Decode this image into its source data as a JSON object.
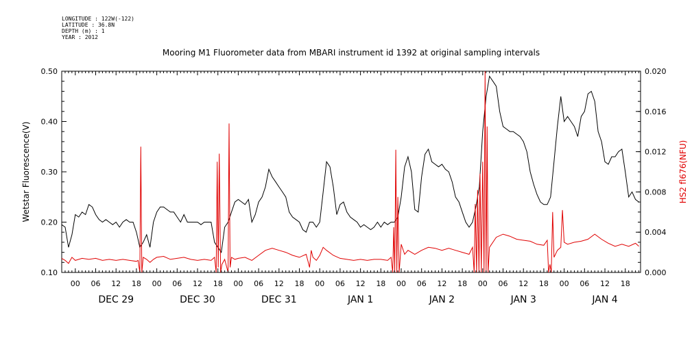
{
  "meta": {
    "longitude": "LONGITUDE : 122W(-122)",
    "latitude": "LATITUDE : 36.8N",
    "depth": "DEPTH (m) : 1",
    "year": "YEAR : 2012"
  },
  "chart_data": {
    "type": "line",
    "title": "Mooring M1 Fluorometer data from MBARI instrument id 1392 at original sampling intervals",
    "x_range_hours": [
      -4,
      166.5
    ],
    "x_tick_labels": [
      "00",
      "06",
      "12",
      "18",
      "00",
      "06",
      "12",
      "18",
      "00",
      "06",
      "12",
      "18",
      "00",
      "06",
      "12",
      "18",
      "00",
      "06",
      "12",
      "18",
      "00",
      "06",
      "12",
      "18",
      "00",
      "06",
      "12",
      "18"
    ],
    "day_labels": [
      "DEC 29",
      "DEC 30",
      "DEC 31",
      "JAN  1",
      "JAN  2",
      "JAN  3",
      "JAN  4"
    ],
    "y_left": {
      "label": "Wetstar Fluorescence(V)",
      "range": [
        0.1,
        0.5
      ],
      "ticks": [
        "0.10",
        "0.20",
        "0.30",
        "0.40",
        "0.50"
      ]
    },
    "y_right": {
      "label": "HS2 fl676(NFU)",
      "range": [
        0.0,
        0.02
      ],
      "ticks": [
        "0.000",
        "0.004",
        "0.008",
        "0.012",
        "0.016",
        "0.020"
      ]
    },
    "series": [
      {
        "axis": "left",
        "color": "#000000",
        "points": [
          [
            -4,
            0.195
          ],
          [
            -3,
            0.19
          ],
          [
            -2,
            0.15
          ],
          [
            -1,
            0.175
          ],
          [
            0,
            0.215
          ],
          [
            1,
            0.21
          ],
          [
            2,
            0.22
          ],
          [
            3,
            0.215
          ],
          [
            4,
            0.235
          ],
          [
            5,
            0.23
          ],
          [
            6,
            0.215
          ],
          [
            7,
            0.205
          ],
          [
            8,
            0.2
          ],
          [
            9,
            0.205
          ],
          [
            10,
            0.2
          ],
          [
            11,
            0.195
          ],
          [
            12,
            0.2
          ],
          [
            13,
            0.19
          ],
          [
            14,
            0.2
          ],
          [
            15,
            0.205
          ],
          [
            16,
            0.2
          ],
          [
            17,
            0.2
          ],
          [
            18,
            0.18
          ],
          [
            19,
            0.15
          ],
          [
            20,
            0.16
          ],
          [
            21,
            0.175
          ],
          [
            22,
            0.15
          ],
          [
            23,
            0.2
          ],
          [
            24,
            0.22
          ],
          [
            25,
            0.23
          ],
          [
            26,
            0.23
          ],
          [
            27,
            0.225
          ],
          [
            28,
            0.22
          ],
          [
            29,
            0.22
          ],
          [
            30,
            0.21
          ],
          [
            31,
            0.2
          ],
          [
            32,
            0.215
          ],
          [
            33,
            0.2
          ],
          [
            34,
            0.2
          ],
          [
            35,
            0.2
          ],
          [
            36,
            0.2
          ],
          [
            37,
            0.195
          ],
          [
            38,
            0.2
          ],
          [
            39,
            0.2
          ],
          [
            40,
            0.2
          ],
          [
            41,
            0.16
          ],
          [
            42,
            0.15
          ],
          [
            43,
            0.14
          ],
          [
            44,
            0.19
          ],
          [
            45,
            0.2
          ],
          [
            46,
            0.22
          ],
          [
            47,
            0.24
          ],
          [
            48,
            0.245
          ],
          [
            49,
            0.24
          ],
          [
            50,
            0.235
          ],
          [
            51,
            0.245
          ],
          [
            52,
            0.2
          ],
          [
            53,
            0.215
          ],
          [
            54,
            0.24
          ],
          [
            55,
            0.25
          ],
          [
            56,
            0.27
          ],
          [
            57,
            0.305
          ],
          [
            58,
            0.29
          ],
          [
            59,
            0.28
          ],
          [
            60,
            0.27
          ],
          [
            61,
            0.26
          ],
          [
            62,
            0.25
          ],
          [
            63,
            0.22
          ],
          [
            64,
            0.21
          ],
          [
            65,
            0.205
          ],
          [
            66,
            0.2
          ],
          [
            67,
            0.185
          ],
          [
            68,
            0.18
          ],
          [
            69,
            0.2
          ],
          [
            70,
            0.2
          ],
          [
            71,
            0.19
          ],
          [
            72,
            0.2
          ],
          [
            73,
            0.26
          ],
          [
            74,
            0.32
          ],
          [
            75,
            0.31
          ],
          [
            76,
            0.27
          ],
          [
            77,
            0.215
          ],
          [
            78,
            0.235
          ],
          [
            79,
            0.24
          ],
          [
            80,
            0.22
          ],
          [
            81,
            0.21
          ],
          [
            82,
            0.205
          ],
          [
            83,
            0.2
          ],
          [
            84,
            0.19
          ],
          [
            85,
            0.195
          ],
          [
            86,
            0.19
          ],
          [
            87,
            0.185
          ],
          [
            88,
            0.19
          ],
          [
            89,
            0.2
          ],
          [
            90,
            0.19
          ],
          [
            91,
            0.2
          ],
          [
            92,
            0.195
          ],
          [
            93,
            0.2
          ],
          [
            94,
            0.2
          ],
          [
            95,
            0.21
          ],
          [
            96,
            0.25
          ],
          [
            97,
            0.31
          ],
          [
            98,
            0.33
          ],
          [
            99,
            0.3
          ],
          [
            100,
            0.225
          ],
          [
            101,
            0.22
          ],
          [
            102,
            0.29
          ],
          [
            103,
            0.335
          ],
          [
            104,
            0.345
          ],
          [
            105,
            0.32
          ],
          [
            106,
            0.315
          ],
          [
            107,
            0.31
          ],
          [
            108,
            0.315
          ],
          [
            109,
            0.305
          ],
          [
            110,
            0.3
          ],
          [
            111,
            0.28
          ],
          [
            112,
            0.25
          ],
          [
            113,
            0.24
          ],
          [
            114,
            0.22
          ],
          [
            115,
            0.2
          ],
          [
            116,
            0.19
          ],
          [
            117,
            0.2
          ],
          [
            118,
            0.23
          ],
          [
            119,
            0.27
          ],
          [
            120,
            0.38
          ],
          [
            121,
            0.45
          ],
          [
            122,
            0.49
          ],
          [
            123,
            0.48
          ],
          [
            124,
            0.47
          ],
          [
            125,
            0.42
          ],
          [
            126,
            0.39
          ],
          [
            127,
            0.385
          ],
          [
            128,
            0.38
          ],
          [
            129,
            0.38
          ],
          [
            130,
            0.375
          ],
          [
            131,
            0.37
          ],
          [
            132,
            0.36
          ],
          [
            133,
            0.34
          ],
          [
            134,
            0.3
          ],
          [
            135,
            0.275
          ],
          [
            136,
            0.255
          ],
          [
            137,
            0.24
          ],
          [
            138,
            0.235
          ],
          [
            139,
            0.235
          ],
          [
            140,
            0.25
          ],
          [
            141,
            0.32
          ],
          [
            142,
            0.39
          ],
          [
            143,
            0.45
          ],
          [
            144,
            0.4
          ],
          [
            145,
            0.41
          ],
          [
            146,
            0.4
          ],
          [
            147,
            0.39
          ],
          [
            148,
            0.37
          ],
          [
            149,
            0.41
          ],
          [
            150,
            0.42
          ],
          [
            151,
            0.455
          ],
          [
            152,
            0.46
          ],
          [
            153,
            0.44
          ],
          [
            154,
            0.38
          ],
          [
            155,
            0.36
          ],
          [
            156,
            0.32
          ],
          [
            157,
            0.315
          ],
          [
            158,
            0.33
          ],
          [
            159,
            0.33
          ],
          [
            160,
            0.34
          ],
          [
            161,
            0.345
          ],
          [
            162,
            0.3
          ],
          [
            163,
            0.25
          ],
          [
            164,
            0.26
          ],
          [
            165,
            0.245
          ],
          [
            166,
            0.24
          ]
        ]
      },
      {
        "axis": "right",
        "color": "#e00000",
        "points": [
          [
            -4,
            0.0014
          ],
          [
            -3,
            0.0012
          ],
          [
            -2,
            0.0009
          ],
          [
            -1,
            0.0015
          ],
          [
            0,
            0.0012
          ],
          [
            2,
            0.0014
          ],
          [
            4,
            0.0013
          ],
          [
            6,
            0.0014
          ],
          [
            8,
            0.0012
          ],
          [
            10,
            0.0013
          ],
          [
            12,
            0.0012
          ],
          [
            14,
            0.0013
          ],
          [
            16,
            0.0012
          ],
          [
            18,
            0.0011
          ],
          [
            18.5,
            0.0012
          ],
          [
            19,
            0.0
          ],
          [
            19.3,
            0.0125
          ],
          [
            19.6,
            0.0
          ],
          [
            20,
            0.0015
          ],
          [
            21,
            0.0013
          ],
          [
            22,
            0.001
          ],
          [
            23,
            0.0013
          ],
          [
            24,
            0.0015
          ],
          [
            26,
            0.0016
          ],
          [
            28,
            0.0013
          ],
          [
            30,
            0.0014
          ],
          [
            32,
            0.0015
          ],
          [
            34,
            0.0013
          ],
          [
            36,
            0.0012
          ],
          [
            38,
            0.0013
          ],
          [
            40,
            0.0012
          ],
          [
            41,
            0.0015
          ],
          [
            41.5,
            0.0
          ],
          [
            41.8,
            0.011
          ],
          [
            42.1,
            0.0005
          ],
          [
            42.4,
            0.0118
          ],
          [
            42.8,
            0.0
          ],
          [
            43.2,
            0.0008
          ],
          [
            44,
            0.0013
          ],
          [
            45,
            0.0
          ],
          [
            45.3,
            0.0148
          ],
          [
            45.6,
            0.0005
          ],
          [
            46,
            0.0015
          ],
          [
            47,
            0.0013
          ],
          [
            48,
            0.0014
          ],
          [
            50,
            0.0015
          ],
          [
            52,
            0.0012
          ],
          [
            54,
            0.0017
          ],
          [
            56,
            0.0022
          ],
          [
            58,
            0.0024
          ],
          [
            60,
            0.0022
          ],
          [
            62,
            0.002
          ],
          [
            64,
            0.0017
          ],
          [
            66,
            0.0015
          ],
          [
            68,
            0.0018
          ],
          [
            69,
            0.0005
          ],
          [
            69.5,
            0.0022
          ],
          [
            70,
            0.0015
          ],
          [
            71,
            0.0012
          ],
          [
            72,
            0.0017
          ],
          [
            73,
            0.0025
          ],
          [
            74,
            0.0022
          ],
          [
            76,
            0.0017
          ],
          [
            78,
            0.0014
          ],
          [
            80,
            0.0013
          ],
          [
            82,
            0.0012
          ],
          [
            84,
            0.0013
          ],
          [
            86,
            0.0012
          ],
          [
            88,
            0.0013
          ],
          [
            90,
            0.0013
          ],
          [
            92,
            0.0012
          ],
          [
            93,
            0.0015
          ],
          [
            93.5,
            0.0
          ],
          [
            93.8,
            0.0045
          ],
          [
            94.1,
            0.0
          ],
          [
            94.4,
            0.0122
          ],
          [
            94.7,
            0.0
          ],
          [
            95,
            0.0075
          ],
          [
            95.4,
            0.0
          ],
          [
            96,
            0.0028
          ],
          [
            97,
            0.0018
          ],
          [
            98,
            0.0022
          ],
          [
            100,
            0.0018
          ],
          [
            102,
            0.0022
          ],
          [
            104,
            0.0025
          ],
          [
            106,
            0.0024
          ],
          [
            108,
            0.0022
          ],
          [
            110,
            0.0024
          ],
          [
            112,
            0.0022
          ],
          [
            114,
            0.002
          ],
          [
            116,
            0.0018
          ],
          [
            117,
            0.0025
          ],
          [
            117.5,
            0.0
          ],
          [
            117.8,
            0.0068
          ],
          [
            118.2,
            0.0
          ],
          [
            118.5,
            0.0082
          ],
          [
            118.9,
            0.0
          ],
          [
            119.2,
            0.0098
          ],
          [
            119.6,
            0.0
          ],
          [
            120,
            0.011
          ],
          [
            120.4,
            0.0
          ],
          [
            120.7,
            0.02
          ],
          [
            121,
            0.0
          ],
          [
            121.3,
            0.0145
          ],
          [
            121.6,
            0.0
          ],
          [
            122,
            0.0025
          ],
          [
            124,
            0.0035
          ],
          [
            126,
            0.0038
          ],
          [
            128,
            0.0036
          ],
          [
            130,
            0.0033
          ],
          [
            132,
            0.0032
          ],
          [
            134,
            0.0031
          ],
          [
            136,
            0.0028
          ],
          [
            138,
            0.0027
          ],
          [
            139,
            0.0032
          ],
          [
            139.4,
            0.0
          ],
          [
            139.8,
            0.0008
          ],
          [
            140.2,
            0.0
          ],
          [
            140.6,
            0.006
          ],
          [
            141,
            0.0015
          ],
          [
            142,
            0.0022
          ],
          [
            143,
            0.0025
          ],
          [
            143.5,
            0.0062
          ],
          [
            144,
            0.003
          ],
          [
            145,
            0.0028
          ],
          [
            147,
            0.003
          ],
          [
            149,
            0.0031
          ],
          [
            151,
            0.0033
          ],
          [
            153,
            0.0038
          ],
          [
            155,
            0.0033
          ],
          [
            157,
            0.0029
          ],
          [
            159,
            0.0026
          ],
          [
            161,
            0.0028
          ],
          [
            163,
            0.0026
          ],
          [
            165,
            0.0029
          ],
          [
            166,
            0.0026
          ]
        ]
      }
    ],
    "grid": false
  }
}
